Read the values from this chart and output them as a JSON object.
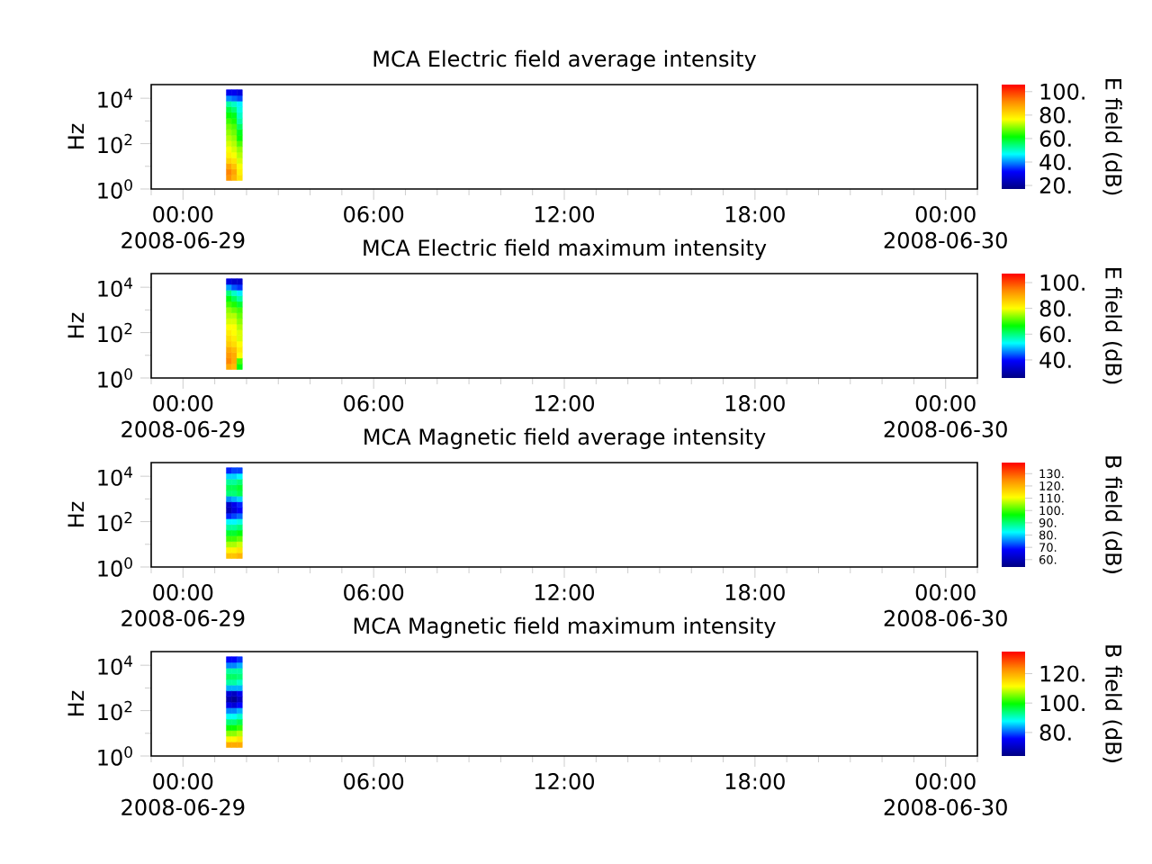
{
  "chart_data": [
    {
      "type": "scatter",
      "title": "MCA Electric field average intensity",
      "ylabel": "Hz",
      "clabel": "E field (dB)",
      "marker": "square",
      "log": "y",
      "xlim": [
        "2008-06-28T23:00",
        "2008-06-30T01:00"
      ],
      "xticks": [
        {
          "value": "2008-06-28T23:00",
          "label": null
        },
        {
          "value": "2008-06-29T00:00",
          "label": "00:00 2008-06-29"
        },
        {
          "value": "2008-06-29T01:00",
          "label": null
        },
        {
          "value": "2008-06-29T02:00",
          "label": null
        },
        {
          "value": "2008-06-29T03:00",
          "label": null
        },
        {
          "value": "2008-06-29T04:00",
          "label": null
        },
        {
          "value": "2008-06-29T05:00",
          "label": null
        },
        {
          "value": "2008-06-29T06:00",
          "label": "06:00"
        },
        {
          "value": "2008-06-29T07:00",
          "label": null
        },
        {
          "value": "2008-06-29T08:00",
          "label": null
        },
        {
          "value": "2008-06-29T09:00",
          "label": null
        },
        {
          "value": "2008-06-29T10:00",
          "label": null
        },
        {
          "value": "2008-06-29T11:00",
          "label": null
        },
        {
          "value": "2008-06-29T12:00",
          "label": "12:00"
        },
        {
          "value": "2008-06-29T13:00",
          "label": null
        },
        {
          "value": "2008-06-29T14:00",
          "label": null
        },
        {
          "value": "2008-06-29T15:00",
          "label": null
        },
        {
          "value": "2008-06-29T16:00",
          "label": null
        },
        {
          "value": "2008-06-29T17:00",
          "label": null
        },
        {
          "value": "2008-06-29T18:00",
          "label": "18:00"
        },
        {
          "value": "2008-06-29T19:00",
          "label": null
        },
        {
          "value": "2008-06-29T20:00",
          "label": null
        },
        {
          "value": "2008-06-29T21:00",
          "label": null
        },
        {
          "value": "2008-06-29T22:00",
          "label": null
        },
        {
          "value": "2008-06-29T23:00",
          "label": null
        },
        {
          "value": "2008-06-30T00:00",
          "label": "00:00 2008-06-30"
        },
        {
          "value": "2008-06-30T01:00",
          "label": null
        }
      ],
      "ylim": [
        1,
        40000
      ],
      "yticks": [
        {
          "value": 1,
          "label": "10$^{0}$"
        },
        {
          "value": 10,
          "label": null
        },
        {
          "value": 100,
          "label": "10$^{2}$"
        },
        {
          "value": 1000,
          "label": null
        },
        {
          "value": 10000,
          "label": "10$^{4}$"
        }
      ],
      "clim": [
        17,
        106
      ],
      "cticks": [
        {
          "value": 100,
          "label": "100."
        },
        {
          "value": 80,
          "label": "80."
        },
        {
          "value": 60,
          "label": "60."
        },
        {
          "value": 40,
          "label": "40."
        },
        {
          "value": 20,
          "label": "20."
        }
      ],
      "x": [
        "2008-06-29T01:27",
        "2008-06-29T01:27",
        "2008-06-29T01:27",
        "2008-06-29T01:27",
        "2008-06-29T01:27",
        "2008-06-29T01:27",
        "2008-06-29T01:27",
        "2008-06-29T01:27",
        "2008-06-29T01:27",
        "2008-06-29T01:27",
        "2008-06-29T01:27",
        "2008-06-29T01:27",
        "2008-06-29T01:27",
        "2008-06-29T01:27",
        "2008-06-29T01:27",
        "2008-06-29T01:27",
        "2008-06-29T01:37",
        "2008-06-29T01:37",
        "2008-06-29T01:37",
        "2008-06-29T01:37",
        "2008-06-29T01:37",
        "2008-06-29T01:37",
        "2008-06-29T01:37",
        "2008-06-29T01:37",
        "2008-06-29T01:37",
        "2008-06-29T01:37",
        "2008-06-29T01:37",
        "2008-06-29T01:37",
        "2008-06-29T01:37",
        "2008-06-29T01:37",
        "2008-06-29T01:37",
        "2008-06-29T01:37",
        "2008-06-29T01:47",
        "2008-06-29T01:47",
        "2008-06-29T01:47",
        "2008-06-29T01:47",
        "2008-06-29T01:47",
        "2008-06-29T01:47",
        "2008-06-29T01:47",
        "2008-06-29T01:47",
        "2008-06-29T01:47",
        "2008-06-29T01:47",
        "2008-06-29T01:47",
        "2008-06-29T01:47",
        "2008-06-29T01:47",
        "2008-06-29T01:47",
        "2008-06-29T01:47",
        "2008-06-29T01:47"
      ],
      "values": [
        3.16,
        5.62,
        10,
        17.8,
        31.6,
        56.2,
        100,
        178,
        316,
        562,
        1000,
        1780,
        3160,
        5620,
        10000,
        17800,
        3.16,
        5.62,
        10,
        17.8,
        31.6,
        56.2,
        100,
        178,
        316,
        562,
        1000,
        1780,
        3160,
        5620,
        10000,
        17800,
        3.16,
        5.62,
        10,
        17.8,
        31.6,
        56.2,
        100,
        178,
        316,
        562,
        1000,
        1780,
        3160,
        5620,
        10000,
        17800
      ],
      "cvalues": [
        90,
        92,
        88,
        82,
        78,
        76,
        74,
        72,
        70,
        68,
        65,
        62,
        58,
        52,
        40,
        30,
        86,
        88,
        84,
        80,
        76,
        74,
        72,
        70,
        68,
        66,
        63,
        60,
        55,
        50,
        38,
        30,
        80,
        78,
        76,
        74,
        72,
        70,
        66,
        62,
        60,
        56,
        52,
        50,
        48,
        46,
        36,
        28
      ]
    },
    {
      "type": "scatter",
      "title": "MCA Electric field maximum intensity",
      "ylabel": "Hz",
      "clabel": "E field (dB)",
      "marker": "square",
      "log": "y",
      "xlim": [
        "2008-06-28T23:00",
        "2008-06-30T01:00"
      ],
      "xticks": [
        {
          "value": "2008-06-28T23:00",
          "label": null
        },
        {
          "value": "2008-06-29T00:00",
          "label": "00:00 2008-06-29"
        },
        {
          "value": "2008-06-29T01:00",
          "label": null
        },
        {
          "value": "2008-06-29T02:00",
          "label": null
        },
        {
          "value": "2008-06-29T03:00",
          "label": null
        },
        {
          "value": "2008-06-29T04:00",
          "label": null
        },
        {
          "value": "2008-06-29T05:00",
          "label": null
        },
        {
          "value": "2008-06-29T06:00",
          "label": "06:00"
        },
        {
          "value": "2008-06-29T07:00",
          "label": null
        },
        {
          "value": "2008-06-29T08:00",
          "label": null
        },
        {
          "value": "2008-06-29T09:00",
          "label": null
        },
        {
          "value": "2008-06-29T10:00",
          "label": null
        },
        {
          "value": "2008-06-29T11:00",
          "label": null
        },
        {
          "value": "2008-06-29T12:00",
          "label": "12:00"
        },
        {
          "value": "2008-06-29T13:00",
          "label": null
        },
        {
          "value": "2008-06-29T14:00",
          "label": null
        },
        {
          "value": "2008-06-29T15:00",
          "label": null
        },
        {
          "value": "2008-06-29T16:00",
          "label": null
        },
        {
          "value": "2008-06-29T17:00",
          "label": null
        },
        {
          "value": "2008-06-29T18:00",
          "label": "18:00"
        },
        {
          "value": "2008-06-29T19:00",
          "label": null
        },
        {
          "value": "2008-06-29T20:00",
          "label": null
        },
        {
          "value": "2008-06-29T21:00",
          "label": null
        },
        {
          "value": "2008-06-29T22:00",
          "label": null
        },
        {
          "value": "2008-06-29T23:00",
          "label": null
        },
        {
          "value": "2008-06-30T00:00",
          "label": "00:00 2008-06-30"
        },
        {
          "value": "2008-06-30T01:00",
          "label": null
        }
      ],
      "ylim": [
        1,
        40000
      ],
      "yticks": [
        {
          "value": 1,
          "label": "10$^{0}$"
        },
        {
          "value": 10,
          "label": null
        },
        {
          "value": 100,
          "label": "10$^{2}$"
        },
        {
          "value": 1000,
          "label": null
        },
        {
          "value": 10000,
          "label": "10$^{4}$"
        }
      ],
      "clim": [
        26,
        107
      ],
      "cticks": [
        {
          "value": 100,
          "label": "100."
        },
        {
          "value": 80,
          "label": "80."
        },
        {
          "value": 60,
          "label": "60."
        },
        {
          "value": 40,
          "label": "40."
        }
      ],
      "x": [
        "2008-06-29T01:27",
        "2008-06-29T01:27",
        "2008-06-29T01:27",
        "2008-06-29T01:27",
        "2008-06-29T01:27",
        "2008-06-29T01:27",
        "2008-06-29T01:27",
        "2008-06-29T01:27",
        "2008-06-29T01:27",
        "2008-06-29T01:27",
        "2008-06-29T01:27",
        "2008-06-29T01:27",
        "2008-06-29T01:27",
        "2008-06-29T01:27",
        "2008-06-29T01:27",
        "2008-06-29T01:27",
        "2008-06-29T01:37",
        "2008-06-29T01:37",
        "2008-06-29T01:37",
        "2008-06-29T01:37",
        "2008-06-29T01:37",
        "2008-06-29T01:37",
        "2008-06-29T01:37",
        "2008-06-29T01:37",
        "2008-06-29T01:37",
        "2008-06-29T01:37",
        "2008-06-29T01:37",
        "2008-06-29T01:37",
        "2008-06-29T01:37",
        "2008-06-29T01:37",
        "2008-06-29T01:37",
        "2008-06-29T01:37",
        "2008-06-29T01:47",
        "2008-06-29T01:47",
        "2008-06-29T01:47",
        "2008-06-29T01:47",
        "2008-06-29T01:47",
        "2008-06-29T01:47",
        "2008-06-29T01:47",
        "2008-06-29T01:47",
        "2008-06-29T01:47",
        "2008-06-29T01:47",
        "2008-06-29T01:47",
        "2008-06-29T01:47",
        "2008-06-29T01:47",
        "2008-06-29T01:47",
        "2008-06-29T01:47",
        "2008-06-29T01:47"
      ],
      "values": [
        3.16,
        5.62,
        10,
        17.8,
        31.6,
        56.2,
        100,
        178,
        316,
        562,
        1000,
        1780,
        3160,
        5620,
        10000,
        17800,
        3.16,
        5.62,
        10,
        17.8,
        31.6,
        56.2,
        100,
        178,
        316,
        562,
        1000,
        1780,
        3160,
        5620,
        10000,
        17800,
        3.16,
        5.62,
        10,
        17.8,
        31.6,
        56.2,
        100,
        178,
        316,
        562,
        1000,
        1780,
        3160,
        5620,
        10000,
        17800
      ],
      "cvalues": [
        90,
        94,
        92,
        90,
        86,
        84,
        82,
        80,
        78,
        76,
        74,
        70,
        66,
        60,
        48,
        36,
        88,
        90,
        90,
        88,
        84,
        82,
        80,
        80,
        78,
        76,
        72,
        68,
        62,
        56,
        44,
        34,
        66,
        70,
        80,
        82,
        80,
        78,
        78,
        76,
        74,
        72,
        70,
        64,
        58,
        52,
        42,
        34
      ]
    },
    {
      "type": "scatter",
      "title": "MCA Magnetic field average intensity",
      "ylabel": "Hz",
      "clabel": "B field (dB)",
      "marker": "square",
      "log": "y",
      "xlim": [
        "2008-06-28T23:00",
        "2008-06-30T01:00"
      ],
      "xticks": [
        {
          "value": "2008-06-28T23:00",
          "label": null
        },
        {
          "value": "2008-06-29T00:00",
          "label": "00:00 2008-06-29"
        },
        {
          "value": "2008-06-29T01:00",
          "label": null
        },
        {
          "value": "2008-06-29T02:00",
          "label": null
        },
        {
          "value": "2008-06-29T03:00",
          "label": null
        },
        {
          "value": "2008-06-29T04:00",
          "label": null
        },
        {
          "value": "2008-06-29T05:00",
          "label": null
        },
        {
          "value": "2008-06-29T06:00",
          "label": "06:00"
        },
        {
          "value": "2008-06-29T07:00",
          "label": null
        },
        {
          "value": "2008-06-29T08:00",
          "label": null
        },
        {
          "value": "2008-06-29T09:00",
          "label": null
        },
        {
          "value": "2008-06-29T10:00",
          "label": null
        },
        {
          "value": "2008-06-29T11:00",
          "label": null
        },
        {
          "value": "2008-06-29T12:00",
          "label": "12:00"
        },
        {
          "value": "2008-06-29T13:00",
          "label": null
        },
        {
          "value": "2008-06-29T14:00",
          "label": null
        },
        {
          "value": "2008-06-29T15:00",
          "label": null
        },
        {
          "value": "2008-06-29T16:00",
          "label": null
        },
        {
          "value": "2008-06-29T17:00",
          "label": null
        },
        {
          "value": "2008-06-29T18:00",
          "label": "18:00"
        },
        {
          "value": "2008-06-29T19:00",
          "label": null
        },
        {
          "value": "2008-06-29T20:00",
          "label": null
        },
        {
          "value": "2008-06-29T21:00",
          "label": null
        },
        {
          "value": "2008-06-29T22:00",
          "label": null
        },
        {
          "value": "2008-06-29T23:00",
          "label": null
        },
        {
          "value": "2008-06-30T00:00",
          "label": "00:00 2008-06-30"
        },
        {
          "value": "2008-06-30T01:00",
          "label": null
        }
      ],
      "ylim": [
        1,
        40000
      ],
      "yticks": [
        {
          "value": 1,
          "label": "10$^{0}$"
        },
        {
          "value": 10,
          "label": null
        },
        {
          "value": 100,
          "label": "10$^{2}$"
        },
        {
          "value": 1000,
          "label": null
        },
        {
          "value": 10000,
          "label": "10$^{4}$"
        }
      ],
      "clim": [
        54,
        139
      ],
      "cticks": [
        {
          "value": 130,
          "label": "130."
        },
        {
          "value": 120,
          "label": "120."
        },
        {
          "value": 110,
          "label": "110."
        },
        {
          "value": 100,
          "label": "100."
        },
        {
          "value": 90,
          "label": "90."
        },
        {
          "value": 80,
          "label": "80."
        },
        {
          "value": 70,
          "label": "70."
        },
        {
          "value": 60,
          "label": "60."
        }
      ],
      "x": [
        "2008-06-29T01:27",
        "2008-06-29T01:27",
        "2008-06-29T01:27",
        "2008-06-29T01:27",
        "2008-06-29T01:27",
        "2008-06-29T01:27",
        "2008-06-29T01:27",
        "2008-06-29T01:27",
        "2008-06-29T01:27",
        "2008-06-29T01:27",
        "2008-06-29T01:27",
        "2008-06-29T01:27",
        "2008-06-29T01:27",
        "2008-06-29T01:27",
        "2008-06-29T01:27",
        "2008-06-29T01:27",
        "2008-06-29T01:37",
        "2008-06-29T01:37",
        "2008-06-29T01:37",
        "2008-06-29T01:37",
        "2008-06-29T01:37",
        "2008-06-29T01:37",
        "2008-06-29T01:37",
        "2008-06-29T01:37",
        "2008-06-29T01:37",
        "2008-06-29T01:37",
        "2008-06-29T01:37",
        "2008-06-29T01:37",
        "2008-06-29T01:37",
        "2008-06-29T01:37",
        "2008-06-29T01:37",
        "2008-06-29T01:37",
        "2008-06-29T01:47",
        "2008-06-29T01:47",
        "2008-06-29T01:47",
        "2008-06-29T01:47",
        "2008-06-29T01:47",
        "2008-06-29T01:47",
        "2008-06-29T01:47",
        "2008-06-29T01:47",
        "2008-06-29T01:47",
        "2008-06-29T01:47",
        "2008-06-29T01:47",
        "2008-06-29T01:47",
        "2008-06-29T01:47",
        "2008-06-29T01:47",
        "2008-06-29T01:47",
        "2008-06-29T01:47"
      ],
      "values": [
        3.16,
        5.62,
        10,
        17.8,
        31.6,
        56.2,
        100,
        178,
        316,
        562,
        1000,
        1780,
        3160,
        5620,
        10000,
        17800,
        3.16,
        5.62,
        10,
        17.8,
        31.6,
        56.2,
        100,
        178,
        316,
        562,
        1000,
        1780,
        3160,
        5620,
        10000,
        17800,
        3.16,
        5.62,
        10,
        17.8,
        31.6,
        56.2,
        100,
        178,
        316,
        562,
        1000,
        1780,
        3160,
        5620,
        10000,
        17800
      ],
      "cvalues": [
        118,
        112,
        106,
        100,
        94,
        88,
        82,
        70,
        60,
        62,
        76,
        90,
        92,
        88,
        80,
        70,
        118,
        112,
        106,
        100,
        94,
        88,
        82,
        72,
        64,
        66,
        78,
        90,
        92,
        88,
        80,
        72,
        120,
        114,
        108,
        102,
        96,
        90,
        84,
        74,
        68,
        70,
        80,
        92,
        94,
        90,
        82,
        72
      ]
    },
    {
      "type": "scatter",
      "title": "MCA Magnetic field maximum intensity",
      "ylabel": "Hz",
      "clabel": "B field (dB)",
      "marker": "square",
      "log": "y",
      "xlim": [
        "2008-06-28T23:00",
        "2008-06-30T01:00"
      ],
      "xticks": [
        {
          "value": "2008-06-28T23:00",
          "label": null
        },
        {
          "value": "2008-06-29T00:00",
          "label": "00:00 2008-06-29"
        },
        {
          "value": "2008-06-29T01:00",
          "label": null
        },
        {
          "value": "2008-06-29T02:00",
          "label": null
        },
        {
          "value": "2008-06-29T03:00",
          "label": null
        },
        {
          "value": "2008-06-29T04:00",
          "label": null
        },
        {
          "value": "2008-06-29T05:00",
          "label": null
        },
        {
          "value": "2008-06-29T06:00",
          "label": "06:00"
        },
        {
          "value": "2008-06-29T07:00",
          "label": null
        },
        {
          "value": "2008-06-29T08:00",
          "label": null
        },
        {
          "value": "2008-06-29T09:00",
          "label": null
        },
        {
          "value": "2008-06-29T10:00",
          "label": null
        },
        {
          "value": "2008-06-29T11:00",
          "label": null
        },
        {
          "value": "2008-06-29T12:00",
          "label": "12:00"
        },
        {
          "value": "2008-06-29T13:00",
          "label": null
        },
        {
          "value": "2008-06-29T14:00",
          "label": null
        },
        {
          "value": "2008-06-29T15:00",
          "label": null
        },
        {
          "value": "2008-06-29T16:00",
          "label": null
        },
        {
          "value": "2008-06-29T17:00",
          "label": null
        },
        {
          "value": "2008-06-29T18:00",
          "label": "18:00"
        },
        {
          "value": "2008-06-29T19:00",
          "label": null
        },
        {
          "value": "2008-06-29T20:00",
          "label": null
        },
        {
          "value": "2008-06-29T21:00",
          "label": null
        },
        {
          "value": "2008-06-29T22:00",
          "label": null
        },
        {
          "value": "2008-06-29T23:00",
          "label": null
        },
        {
          "value": "2008-06-30T00:00",
          "label": "00:00 2008-06-30"
        },
        {
          "value": "2008-06-30T01:00",
          "label": null
        }
      ],
      "ylim": [
        1,
        40000
      ],
      "yticks": [
        {
          "value": 1,
          "label": "10$^{0}$"
        },
        {
          "value": 10,
          "label": null
        },
        {
          "value": 100,
          "label": "10$^{2}$"
        },
        {
          "value": 1000,
          "label": null
        },
        {
          "value": 10000,
          "label": "10$^{4}$"
        }
      ],
      "clim": [
        64,
        135
      ],
      "cticks": [
        {
          "value": 120,
          "label": "120."
        },
        {
          "value": 100,
          "label": "100."
        },
        {
          "value": 80,
          "label": "80."
        }
      ],
      "x": [
        "2008-06-29T01:27",
        "2008-06-29T01:27",
        "2008-06-29T01:27",
        "2008-06-29T01:27",
        "2008-06-29T01:27",
        "2008-06-29T01:27",
        "2008-06-29T01:27",
        "2008-06-29T01:27",
        "2008-06-29T01:27",
        "2008-06-29T01:27",
        "2008-06-29T01:27",
        "2008-06-29T01:27",
        "2008-06-29T01:27",
        "2008-06-29T01:27",
        "2008-06-29T01:27",
        "2008-06-29T01:27",
        "2008-06-29T01:37",
        "2008-06-29T01:37",
        "2008-06-29T01:37",
        "2008-06-29T01:37",
        "2008-06-29T01:37",
        "2008-06-29T01:37",
        "2008-06-29T01:37",
        "2008-06-29T01:37",
        "2008-06-29T01:37",
        "2008-06-29T01:37",
        "2008-06-29T01:37",
        "2008-06-29T01:37",
        "2008-06-29T01:37",
        "2008-06-29T01:37",
        "2008-06-29T01:37",
        "2008-06-29T01:37",
        "2008-06-29T01:47",
        "2008-06-29T01:47",
        "2008-06-29T01:47",
        "2008-06-29T01:47",
        "2008-06-29T01:47",
        "2008-06-29T01:47",
        "2008-06-29T01:47",
        "2008-06-29T01:47",
        "2008-06-29T01:47",
        "2008-06-29T01:47",
        "2008-06-29T01:47",
        "2008-06-29T01:47",
        "2008-06-29T01:47",
        "2008-06-29T01:47",
        "2008-06-29T01:47",
        "2008-06-29T01:47"
      ],
      "values": [
        3.16,
        5.62,
        10,
        17.8,
        31.6,
        56.2,
        100,
        178,
        316,
        562,
        1000,
        1780,
        3160,
        5620,
        10000,
        17800,
        3.16,
        5.62,
        10,
        17.8,
        31.6,
        56.2,
        100,
        178,
        316,
        562,
        1000,
        1780,
        3160,
        5620,
        10000,
        17800,
        3.16,
        5.62,
        10,
        17.8,
        31.6,
        56.2,
        100,
        178,
        316,
        562,
        1000,
        1780,
        3160,
        5620,
        10000,
        17800
      ],
      "cvalues": [
        120,
        112,
        106,
        100,
        94,
        88,
        82,
        74,
        68,
        72,
        84,
        92,
        95,
        92,
        82,
        76,
        120,
        112,
        106,
        100,
        94,
        88,
        82,
        72,
        66,
        70,
        84,
        92,
        95,
        92,
        82,
        76,
        120,
        114,
        108,
        102,
        96,
        90,
        84,
        76,
        70,
        74,
        84,
        90,
        94,
        92,
        84,
        78
      ]
    }
  ]
}
